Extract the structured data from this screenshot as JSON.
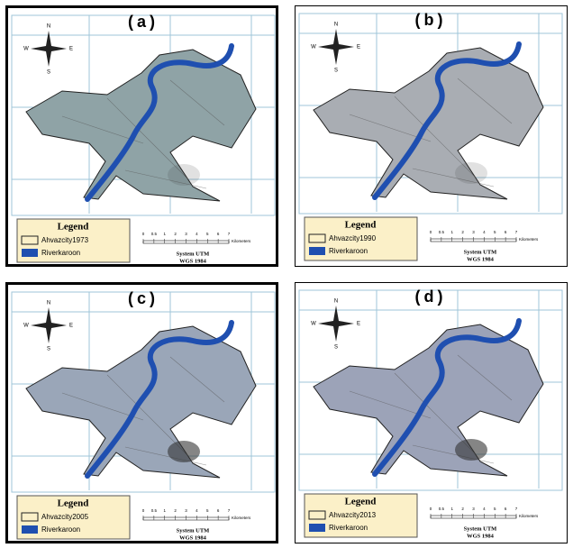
{
  "panels": [
    {
      "label": "(a)",
      "legend": {
        "title": "Legend",
        "items": [
          "Ahvazcity1973",
          "Riverkaroon"
        ]
      },
      "scale": {
        "ticks": [
          "0",
          "0.5",
          "1",
          "2",
          "3",
          "4",
          "5",
          "6",
          "7"
        ],
        "unit": "Kilometers"
      },
      "projection": [
        "System UTM",
        "WGS 1984"
      ],
      "compass": {
        "n": "N",
        "s": "S",
        "e": "E",
        "w": "W"
      }
    },
    {
      "label": "(b)",
      "legend": {
        "title": "Legend",
        "items": [
          "Ahvazcity1990",
          "Riverkaroon"
        ]
      },
      "scale": {
        "ticks": [
          "0",
          "0.5",
          "1",
          "2",
          "3",
          "4",
          "5",
          "6",
          "7"
        ],
        "unit": "Kilometers"
      },
      "projection": [
        "System UTM",
        "WGS 1984"
      ],
      "compass": {
        "n": "N",
        "s": "S",
        "e": "E",
        "w": "W"
      }
    },
    {
      "label": "(c)",
      "legend": {
        "title": "Legend",
        "items": [
          "Ahvazcity2005",
          "Riverkaroon"
        ]
      },
      "scale": {
        "ticks": [
          "0",
          "0.5",
          "1",
          "2",
          "3",
          "4",
          "5",
          "6",
          "7"
        ],
        "unit": "Kilometers"
      },
      "projection": [
        "System UTM",
        "WGS 1984"
      ],
      "compass": {
        "n": "N",
        "s": "S",
        "e": "E",
        "w": "W"
      }
    },
    {
      "label": "(d)",
      "legend": {
        "title": "Legend",
        "items": [
          "Ahvazcity2013",
          "Riverkaroon"
        ]
      },
      "scale": {
        "ticks": [
          "0",
          "0.5",
          "1",
          "2",
          "3",
          "4",
          "5",
          "6",
          "7"
        ],
        "unit": "Kilometers"
      },
      "projection": [
        "System UTM",
        "WGS 1984"
      ],
      "compass": {
        "n": "N",
        "s": "S",
        "e": "E",
        "w": "W"
      }
    }
  ]
}
